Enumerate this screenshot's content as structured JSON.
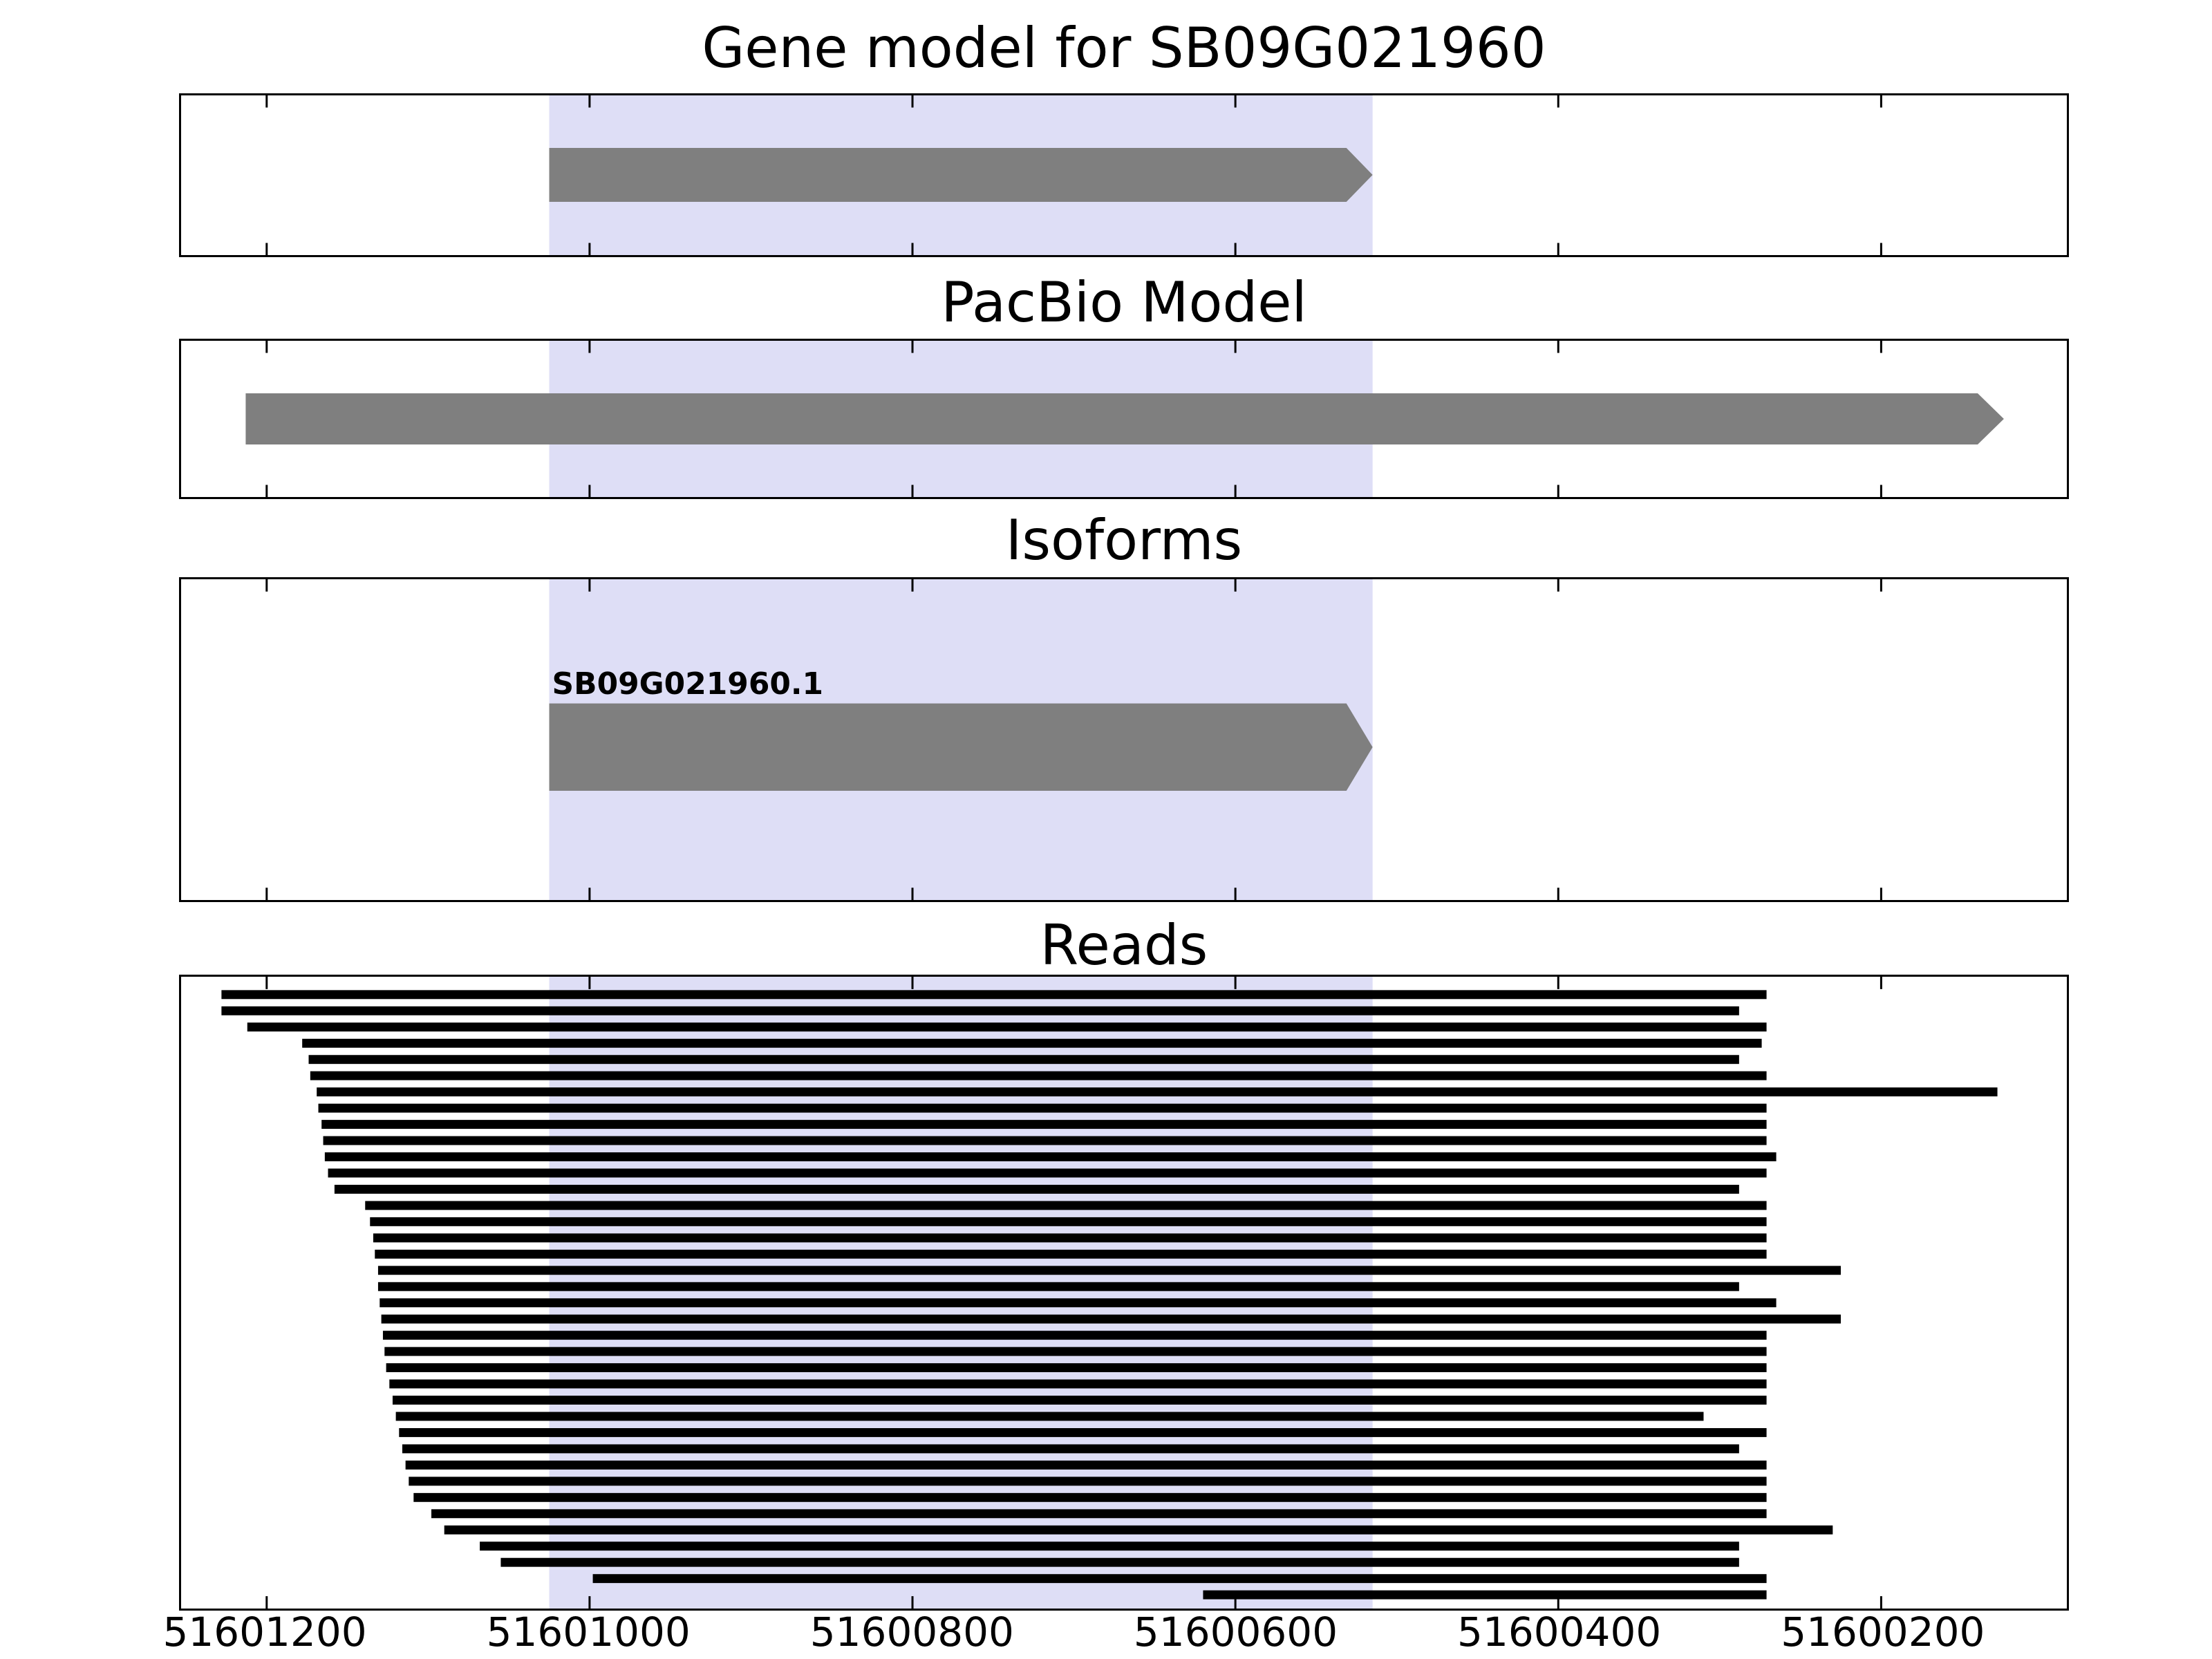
{
  "chart_data": {
    "type": "genomic-tracks",
    "title": "Gene model for SB09G021960",
    "x_axis": {
      "xlim": [
        51601253,
        51600085
      ],
      "reversed": true,
      "ticks": [
        51601200,
        51601000,
        51600800,
        51600600,
        51600400,
        51600200
      ],
      "tick_labels": [
        "51601200",
        "51601000",
        "51600800",
        "51600600",
        "51600400",
        "51600200"
      ]
    },
    "highlight_region": {
      "start": 51601025,
      "end": 51600515,
      "color": "#dedef6"
    },
    "feature_color": "#7f7f7f",
    "read_color": "#000000",
    "tracks": [
      {
        "title": "Gene model for SB09G021960",
        "kind": "feature",
        "features": [
          {
            "start": 51601025,
            "end": 51600515,
            "direction": "right"
          }
        ]
      },
      {
        "title": "PacBio Model",
        "kind": "feature",
        "features": [
          {
            "start": 51601213,
            "end": 51600124,
            "direction": "right"
          }
        ]
      },
      {
        "title": "Isoforms",
        "kind": "feature",
        "features": [
          {
            "label": "SB09G021960.1",
            "start": 51601025,
            "end": 51600515,
            "direction": "right"
          }
        ]
      },
      {
        "title": "Reads",
        "kind": "reads",
        "reads": [
          [
            51601228,
            51600271
          ],
          [
            51601228,
            51600288
          ],
          [
            51601212,
            51600271
          ],
          [
            51601178,
            51600274
          ],
          [
            51601174,
            51600288
          ],
          [
            51601173,
            51600271
          ],
          [
            51601169,
            51600128
          ],
          [
            51601168,
            51600271
          ],
          [
            51601166,
            51600271
          ],
          [
            51601165,
            51600271
          ],
          [
            51601164,
            51600265
          ],
          [
            51601162,
            51600271
          ],
          [
            51601158,
            51600288
          ],
          [
            51601139,
            51600271
          ],
          [
            51601136,
            51600271
          ],
          [
            51601134,
            51600271
          ],
          [
            51601133,
            51600271
          ],
          [
            51601131,
            51600225
          ],
          [
            51601131,
            51600288
          ],
          [
            51601130,
            51600265
          ],
          [
            51601129,
            51600225
          ],
          [
            51601128,
            51600271
          ],
          [
            51601127,
            51600271
          ],
          [
            51601126,
            51600271
          ],
          [
            51601124,
            51600271
          ],
          [
            51601122,
            51600271
          ],
          [
            51601120,
            51600310
          ],
          [
            51601118,
            51600271
          ],
          [
            51601116,
            51600288
          ],
          [
            51601114,
            51600271
          ],
          [
            51601112,
            51600271
          ],
          [
            51601109,
            51600271
          ],
          [
            51601098,
            51600271
          ],
          [
            51601090,
            51600230
          ],
          [
            51601068,
            51600288
          ],
          [
            51601055,
            51600288
          ],
          [
            51600998,
            51600271
          ],
          [
            51600620,
            51600271
          ]
        ]
      }
    ]
  }
}
